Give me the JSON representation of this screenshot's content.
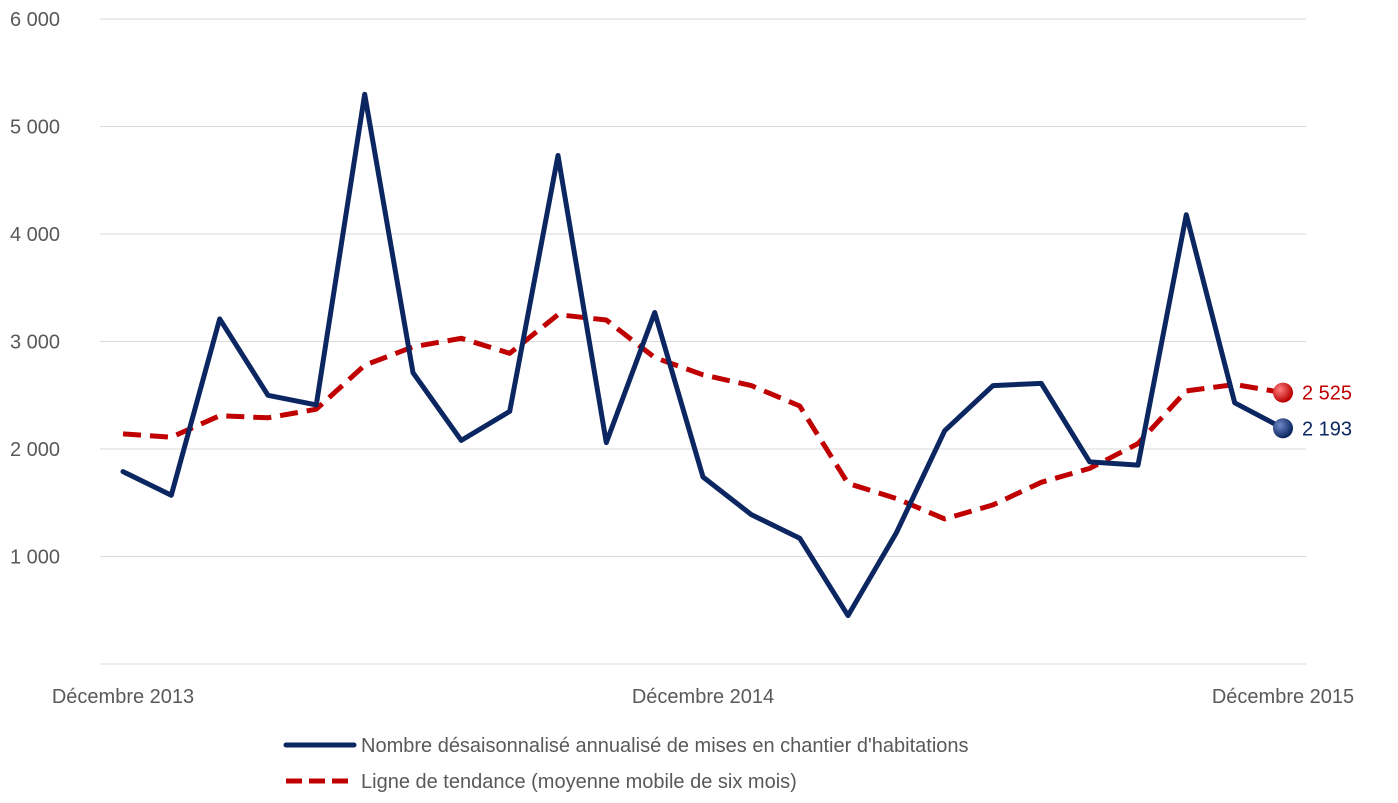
{
  "chart_data": {
    "type": "line",
    "title": "",
    "xlabel": "",
    "ylabel": "",
    "ylim": [
      0,
      6000
    ],
    "y_ticks": [
      {
        "value": 1000,
        "label": "1 000"
      },
      {
        "value": 2000,
        "label": "2 000"
      },
      {
        "value": 3000,
        "label": "3 000"
      },
      {
        "value": 4000,
        "label": "4 000"
      },
      {
        "value": 5000,
        "label": "5 000"
      },
      {
        "value": 6000,
        "label": "6 000"
      }
    ],
    "x_ticks": [
      {
        "index": 0,
        "label": "Décembre 2013"
      },
      {
        "index": 12,
        "label": "Décembre 2014"
      },
      {
        "index": 24,
        "label": "Décembre 2015"
      }
    ],
    "x": [
      "2013-12",
      "2014-01",
      "2014-02",
      "2014-03",
      "2014-04",
      "2014-05",
      "2014-06",
      "2014-07",
      "2014-08",
      "2014-09",
      "2014-10",
      "2014-11",
      "2014-12",
      "2015-01",
      "2015-02",
      "2015-03",
      "2015-04",
      "2015-05",
      "2015-06",
      "2015-07",
      "2015-08",
      "2015-09",
      "2015-10",
      "2015-11",
      "2015-12"
    ],
    "grid": true,
    "legend_position": "bottom",
    "series": [
      {
        "name": "Nombre désaisonnalisé annualisé de mises en chantier d'habitations",
        "color": "#0b2660",
        "style": "solid",
        "values": [
          1790,
          1570,
          3210,
          2500,
          2410,
          5300,
          2710,
          2080,
          2350,
          4730,
          2060,
          3270,
          1740,
          1390,
          1170,
          450,
          1220,
          2170,
          2590,
          2610,
          1880,
          1850,
          4180,
          2430,
          2193
        ],
        "end_label": "2 193"
      },
      {
        "name": "Ligne de tendance (moyenne mobile de six mois)",
        "color": "#c00000",
        "style": "dashed",
        "values": [
          2140,
          2110,
          2310,
          2290,
          2370,
          2780,
          2950,
          3030,
          2890,
          3250,
          3200,
          2850,
          2690,
          2590,
          2400,
          1680,
          1540,
          1350,
          1480,
          1690,
          1820,
          2050,
          2540,
          2600,
          2525
        ],
        "end_label": "2 525"
      }
    ]
  }
}
